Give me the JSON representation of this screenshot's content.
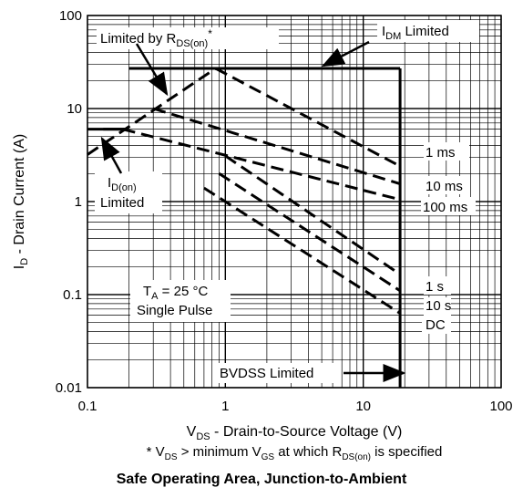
{
  "chart_data": {
    "type": "line",
    "title": "Safe Operating Area, Junction-to-Ambient",
    "xlabel": "V_DS - Drain-to-Source Voltage (V)",
    "ylabel": "I_D - Drain Current (A)",
    "footnote": "* V_DS > minimum V_GS at which R_DS(on) is specified",
    "xscale": "log",
    "yscale": "log",
    "xlim": [
      0.1,
      100
    ],
    "ylim": [
      0.01,
      100
    ],
    "x_ticks": [
      "0.1",
      "1",
      "10",
      "100"
    ],
    "y_ticks": [
      "0.01",
      "0.1",
      "1",
      "10",
      "100"
    ],
    "grid": true,
    "limits": {
      "idm_current": 27,
      "id_on_current": 6,
      "bvdss_voltage": 18.5
    },
    "series": [
      {
        "name": "1 ms",
        "style": "dashed",
        "x": [
          0.85,
          18.5
        ],
        "y": [
          27,
          2.4
        ]
      },
      {
        "name": "10 ms",
        "style": "dashed",
        "x": [
          0.3,
          18.5
        ],
        "y": [
          10,
          1.55
        ]
      },
      {
        "name": "100 ms",
        "style": "dashed",
        "x": [
          0.18,
          18.5
        ],
        "y": [
          6,
          1.05
        ]
      },
      {
        "name": "1 s",
        "style": "dashed",
        "x": [
          1.0,
          18.5
        ],
        "y": [
          3.1,
          0.165
        ]
      },
      {
        "name": "10 s",
        "style": "dashed",
        "x": [
          0.9,
          18.5
        ],
        "y": [
          2.0,
          0.11
        ]
      },
      {
        "name": "DC",
        "style": "dashed",
        "x": [
          0.7,
          18.5
        ],
        "y": [
          1.4,
          0.063
        ]
      },
      {
        "name": "R_DS(on) limit",
        "style": "dashed",
        "x": [
          0.1,
          0.85
        ],
        "y": [
          3.2,
          27
        ]
      }
    ],
    "annotations": {
      "rds_limited": {
        "prefix": "Limited by R",
        "sub": "DS(on)",
        "suffix": "*"
      },
      "idm_limited": {
        "main": "I",
        "sub": "DM",
        "suffix": " Limited"
      },
      "id_on_limited": {
        "line1_main": "I",
        "line1_sub": "D(on)",
        "line2": "Limited"
      },
      "conditions": {
        "line1_main": "T",
        "line1_sub": "A",
        "line1_suffix": " = 25 °C",
        "line2": "Single Pulse"
      },
      "bvdss_limited": "BVDSS Limited"
    }
  }
}
